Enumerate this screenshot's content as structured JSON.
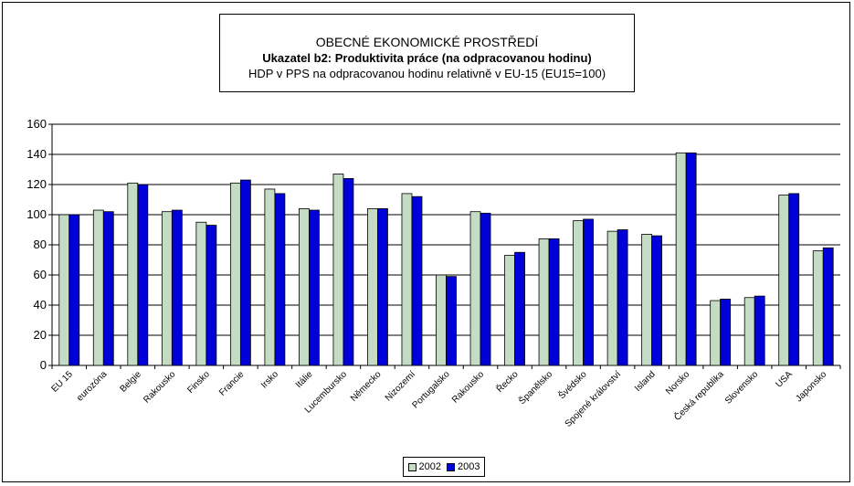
{
  "chart_data": {
    "type": "bar",
    "title": "OBECNÉ EKONOMICKÉ PROSTŘEDÍ",
    "subtitle": "Ukazatel b2: Produktivita práce (na odpracovanou hodinu)",
    "subtitle2": "HDP v PPS na odpracovanou hodinu relativně v EU-15 (EU15=100)",
    "ylim": [
      0,
      160
    ],
    "yticks": [
      0,
      20,
      40,
      60,
      80,
      100,
      120,
      140,
      160
    ],
    "grid": true,
    "legend_position": "bottom",
    "categories": [
      "EU 15",
      "eurozóna",
      "Belgie",
      "Rakousko",
      "Finsko",
      "Francie",
      "Irsko",
      "Itálie",
      "Lucembursko",
      "Německo",
      "Nizozemí",
      "Portugalsko",
      "Rakousko",
      "Řecko",
      "Španělsko",
      "Švédsko",
      "Spojené království",
      "Island",
      "Norsko",
      "Česká republika",
      "Slovensko",
      "USA",
      "Japonsko"
    ],
    "series": [
      {
        "name": "2002",
        "color": "#c4dcc4",
        "values": [
          100,
          103,
          121,
          102,
          95,
          121,
          117,
          104,
          127,
          104,
          114,
          60,
          102,
          73,
          84,
          96,
          89,
          87,
          141,
          43,
          45,
          113,
          76
        ]
      },
      {
        "name": "2003",
        "color": "#0000d8",
        "values": [
          100,
          102,
          120,
          103,
          93,
          123,
          114,
          103,
          124,
          104,
          112,
          59,
          101,
          75,
          84,
          97,
          90,
          86,
          141,
          44,
          46,
          114,
          78
        ]
      }
    ]
  }
}
